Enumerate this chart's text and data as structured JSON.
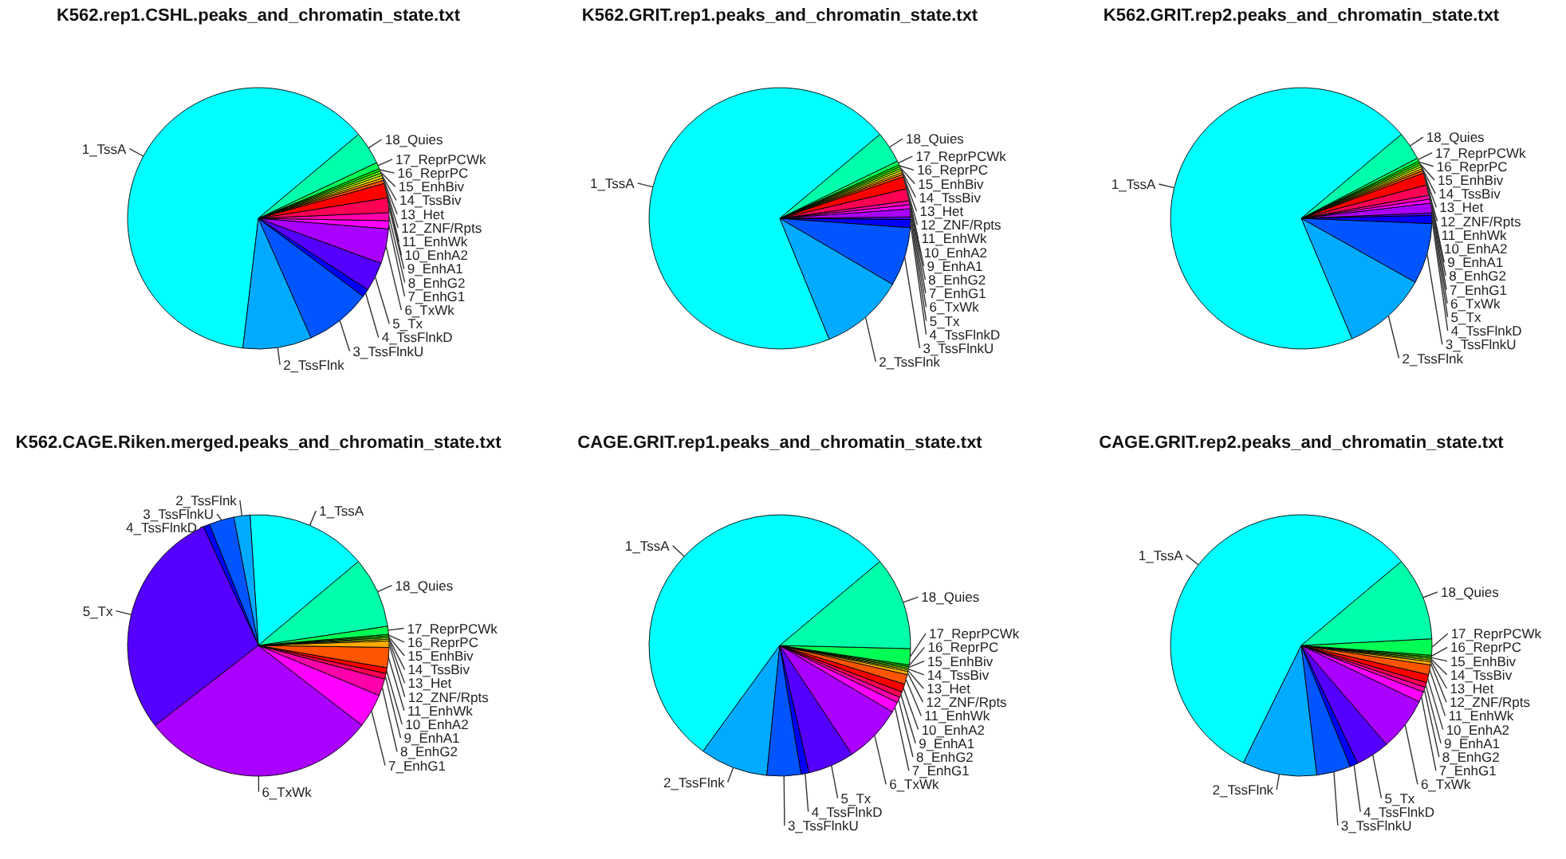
{
  "chart_data": [
    {
      "type": "pie",
      "title": "K562.rep1.CSHL.peaks_and_chromatin_state.txt",
      "categories": [
        "1_TssA",
        "2_TssFlnk",
        "3_TssFlnkU",
        "4_TssFlnkD",
        "5_Tx",
        "6_TxWk",
        "7_EnhG1",
        "8_EnhG2",
        "9_EnhA1",
        "10_EnhA2",
        "11_EnhWk",
        "12_ZNF/Rpts",
        "13_Het",
        "14_TssBiv",
        "15_EnhBiv",
        "16_ReprPC",
        "17_ReprPCWk",
        "18_Quies"
      ],
      "values": [
        62,
        8.5,
        8.2,
        1,
        3.6,
        4.3,
        1,
        1,
        1.8,
        1.8,
        0.4,
        0.3,
        0.3,
        0.3,
        0.3,
        0.3,
        0.8,
        4.1
      ],
      "colors": [
        "#00ffff",
        "#00aaff",
        "#0055ff",
        "#0000ff",
        "#5500ff",
        "#aa00ff",
        "#ff00ff",
        "#ff00aa",
        "#ff0055",
        "#ff0000",
        "#ff5500",
        "#ffaa00",
        "#ffff00",
        "#aaff00",
        "#55ff00",
        "#00ff00",
        "#00ff55",
        "#00ffaa"
      ]
    },
    {
      "type": "pie",
      "title": "K562.GRIT.rep1.peaks_and_chromatin_state.txt",
      "categories": [
        "1_TssA",
        "2_TssFlnk",
        "3_TssFlnkU",
        "4_TssFlnkD",
        "5_Tx",
        "6_TxWk",
        "7_EnhG1",
        "8_EnhG2",
        "9_EnhA1",
        "10_EnhA2",
        "11_EnhWk",
        "12_ZNF/Rpts",
        "13_Het",
        "14_TssBiv",
        "15_EnhBiv",
        "16_ReprPC",
        "17_ReprPCWk",
        "18_Quies"
      ],
      "values": [
        70.1,
        10.4,
        7.3,
        1,
        0.3,
        1,
        0.5,
        0.5,
        1.5,
        1.5,
        0.3,
        0.25,
        0.25,
        0.25,
        0.25,
        0.25,
        0.5,
        3.9
      ],
      "colors": [
        "#00ffff",
        "#00aaff",
        "#0055ff",
        "#0000ff",
        "#5500ff",
        "#aa00ff",
        "#ff00ff",
        "#ff00aa",
        "#ff0055",
        "#ff0000",
        "#ff5500",
        "#ffaa00",
        "#ffff00",
        "#aaff00",
        "#55ff00",
        "#00ff00",
        "#00ff55",
        "#00ffaa"
      ]
    },
    {
      "type": "pie",
      "title": "K562.GRIT.rep2.peaks_and_chromatin_state.txt",
      "categories": [
        "1_TssA",
        "2_TssFlnk",
        "3_TssFlnkU",
        "4_TssFlnkD",
        "5_Tx",
        "6_TxWk",
        "7_EnhG1",
        "8_EnhG2",
        "9_EnhA1",
        "10_EnhA2",
        "11_EnhWk",
        "12_ZNF/Rpts",
        "13_Het",
        "14_TssBiv",
        "15_EnhBiv",
        "16_ReprPC",
        "17_ReprPCWk",
        "18_Quies"
      ],
      "values": [
        70.25,
        10.5,
        7.5,
        1,
        0.3,
        1.2,
        0.5,
        0.5,
        1.3,
        1.5,
        0.3,
        0.25,
        0.25,
        0.25,
        0.25,
        0.25,
        0.4,
        3.5
      ],
      "colors": [
        "#00ffff",
        "#00aaff",
        "#0055ff",
        "#0000ff",
        "#5500ff",
        "#aa00ff",
        "#ff00ff",
        "#ff00aa",
        "#ff0055",
        "#ff0000",
        "#ff5500",
        "#ffaa00",
        "#ffff00",
        "#aaff00",
        "#55ff00",
        "#00ff00",
        "#00ff55",
        "#00ffaa"
      ]
    },
    {
      "type": "pie",
      "title": "K562.CAGE.Riken.merged.peaks_and_chromatin_state.txt",
      "categories": [
        "1_TssA",
        "2_TssFlnk",
        "3_TssFlnkU",
        "4_TssFlnkD",
        "5_Tx",
        "6_TxWk",
        "7_EnhG1",
        "8_EnhG2",
        "9_EnhA1",
        "10_EnhA2",
        "11_EnhWk",
        "12_ZNF/Rpts",
        "13_Het",
        "14_TssBiv",
        "15_EnhBiv",
        "16_ReprPC",
        "17_ReprPCWk",
        "18_Quies"
      ],
      "values": [
        14.9,
        2,
        3.1,
        0.8,
        28.6,
        29.05,
        4.2,
        2.1,
        0.7,
        0.7,
        2.5,
        0.8,
        0.2,
        0.2,
        0.2,
        0.2,
        1,
        8.75
      ],
      "colors": [
        "#00ffff",
        "#00aaff",
        "#0055ff",
        "#0000ff",
        "#5500ff",
        "#aa00ff",
        "#ff00ff",
        "#ff00aa",
        "#ff0055",
        "#ff0000",
        "#ff5500",
        "#ffaa00",
        "#ffff00",
        "#aaff00",
        "#55ff00",
        "#00ff00",
        "#00ff55",
        "#00ffaa"
      ]
    },
    {
      "type": "pie",
      "title": "CAGE.GRIT.rep1.peaks_and_chromatin_state.txt",
      "categories": [
        "1_TssA",
        "2_TssFlnk",
        "3_TssFlnkU",
        "4_TssFlnkD",
        "5_Tx",
        "6_TxWk",
        "7_EnhG1",
        "8_EnhG2",
        "9_EnhA1",
        "10_EnhA2",
        "11_EnhWk",
        "12_ZNF/Rpts",
        "13_Het",
        "14_TssBiv",
        "15_EnhBiv",
        "16_ReprPC",
        "17_ReprPCWk",
        "18_Quies"
      ],
      "values": [
        53.9,
        8.4,
        4.2,
        1,
        5.7,
        7.2,
        1.3,
        0.7,
        0.7,
        1,
        1.2,
        0.4,
        0.2,
        0.2,
        0.2,
        0.2,
        2,
        11.5
      ],
      "colors": [
        "#00ffff",
        "#00aaff",
        "#0055ff",
        "#0000ff",
        "#5500ff",
        "#aa00ff",
        "#ff00ff",
        "#ff00aa",
        "#ff0055",
        "#ff0000",
        "#ff5500",
        "#ffaa00",
        "#ffff00",
        "#aaff00",
        "#55ff00",
        "#00ff00",
        "#00ff55",
        "#00ffaa"
      ]
    },
    {
      "type": "pie",
      "title": "CAGE.GRIT.rep2.peaks_and_chromatin_state.txt",
      "categories": [
        "1_TssA",
        "2_TssFlnk",
        "3_TssFlnkU",
        "4_TssFlnkD",
        "5_Tx",
        "6_TxWk",
        "7_EnhG1",
        "8_EnhG2",
        "9_EnhA1",
        "10_EnhA2",
        "11_EnhWk",
        "12_ZNF/Rpts",
        "13_Het",
        "14_TssBiv",
        "15_EnhBiv",
        "16_ReprPC",
        "17_ReprPCWk",
        "18_Quies"
      ],
      "values": [
        56.6,
        9.2,
        4.2,
        1,
        4.2,
        6.6,
        1.3,
        0.6,
        0.6,
        1,
        1.2,
        0.4,
        0.2,
        0.2,
        0.2,
        0.2,
        2,
        10.3
      ],
      "colors": [
        "#00ffff",
        "#00aaff",
        "#0055ff",
        "#0000ff",
        "#5500ff",
        "#aa00ff",
        "#ff00ff",
        "#ff00aa",
        "#ff0055",
        "#ff0000",
        "#ff5500",
        "#ffaa00",
        "#ffff00",
        "#aaff00",
        "#55ff00",
        "#00ff00",
        "#00ff55",
        "#00ffaa"
      ]
    }
  ]
}
